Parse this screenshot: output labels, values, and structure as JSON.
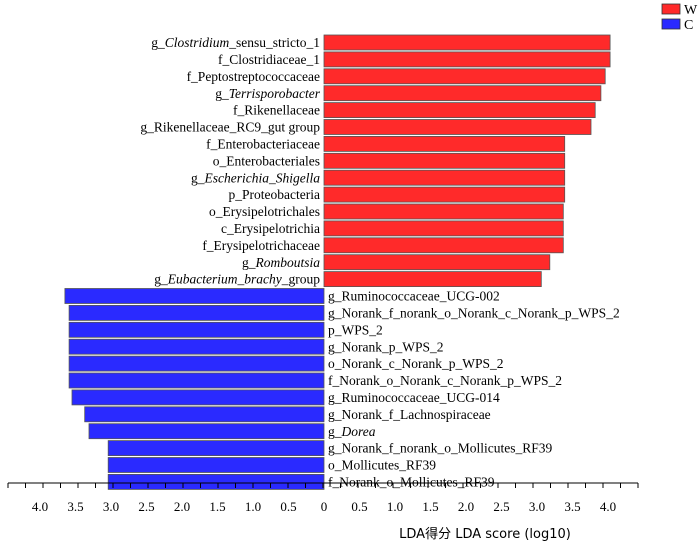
{
  "chart_data": {
    "type": "bar",
    "orientation": "horizontal-diverging",
    "xlabel": "LDA得分  LDA score (log10)",
    "xlim": [
      -4.0,
      4.0
    ],
    "xticks": [
      {
        "value": -4.0,
        "label": "4.0"
      },
      {
        "value": -3.5,
        "label": "3.5"
      },
      {
        "value": -3.0,
        "label": "3.0"
      },
      {
        "value": -2.5,
        "label": "2.5"
      },
      {
        "value": -2.0,
        "label": "2.0"
      },
      {
        "value": -1.5,
        "label": "1.5"
      },
      {
        "value": -1.0,
        "label": "1.0"
      },
      {
        "value": -0.5,
        "label": "0.5"
      },
      {
        "value": 0.0,
        "label": "0"
      },
      {
        "value": 0.5,
        "label": "0.5"
      },
      {
        "value": 1.0,
        "label": "1.0"
      },
      {
        "value": 1.5,
        "label": "1.5"
      },
      {
        "value": 2.0,
        "label": "2.0"
      },
      {
        "value": 2.5,
        "label": "2.5"
      },
      {
        "value": 3.0,
        "label": "3.0"
      },
      {
        "value": 3.5,
        "label": "3.5"
      },
      {
        "value": 4.0,
        "label": "4.0"
      }
    ],
    "legend": {
      "placement": "top-right",
      "entries": [
        {
          "name": "W",
          "color": "#ff2a2a"
        },
        {
          "name": "C",
          "color": "#2a2aff"
        }
      ]
    },
    "bars": [
      {
        "group": "W",
        "value": 4.03,
        "segments": [
          {
            "text": "g_"
          },
          {
            "text": "Clostridium",
            "italic": true
          },
          {
            "text": "_sensu_stricto_1"
          }
        ]
      },
      {
        "group": "W",
        "value": 4.03,
        "segments": [
          {
            "text": "f_Clostridiaceae_1"
          }
        ]
      },
      {
        "group": "W",
        "value": 3.96,
        "segments": [
          {
            "text": "f_Peptostreptococcaceae"
          }
        ]
      },
      {
        "group": "W",
        "value": 3.9,
        "segments": [
          {
            "text": "g_"
          },
          {
            "text": "Terrisporobacter",
            "italic": true
          }
        ]
      },
      {
        "group": "W",
        "value": 3.82,
        "segments": [
          {
            "text": "f_Rikenellaceae"
          }
        ]
      },
      {
        "group": "W",
        "value": 3.76,
        "segments": [
          {
            "text": "g_Rikenellaceae_RC9_gut group"
          }
        ]
      },
      {
        "group": "W",
        "value": 3.39,
        "segments": [
          {
            "text": "f_Enterobacteriaceae"
          }
        ]
      },
      {
        "group": "W",
        "value": 3.39,
        "segments": [
          {
            "text": "o_Enterobacteriales"
          }
        ]
      },
      {
        "group": "W",
        "value": 3.39,
        "segments": [
          {
            "text": "g_"
          },
          {
            "text": "Escherichia_Shigella",
            "italic": true
          }
        ]
      },
      {
        "group": "W",
        "value": 3.39,
        "segments": [
          {
            "text": "p_Proteobacteria"
          }
        ]
      },
      {
        "group": "W",
        "value": 3.37,
        "segments": [
          {
            "text": "o_Erysipelotrichales"
          }
        ]
      },
      {
        "group": "W",
        "value": 3.37,
        "segments": [
          {
            "text": "c_Erysipelotrichia"
          }
        ]
      },
      {
        "group": "W",
        "value": 3.37,
        "segments": [
          {
            "text": "f_Erysipelotrichaceae"
          }
        ]
      },
      {
        "group": "W",
        "value": 3.18,
        "segments": [
          {
            "text": "g_"
          },
          {
            "text": "Romboutsia",
            "italic": true
          }
        ]
      },
      {
        "group": "W",
        "value": 3.06,
        "segments": [
          {
            "text": "g_"
          },
          {
            "text": "Eubacterium_brachy",
            "italic": true
          },
          {
            "text": "_group"
          }
        ]
      },
      {
        "group": "C",
        "value": -3.65,
        "segments": [
          {
            "text": "g_Ruminococcaceae_UCG-002"
          }
        ]
      },
      {
        "group": "C",
        "value": -3.59,
        "segments": [
          {
            "text": "g_Norank_f_norank_o_Norank_c_Norank_p_WPS_2"
          }
        ]
      },
      {
        "group": "C",
        "value": -3.59,
        "segments": [
          {
            "text": "p_WPS_2"
          }
        ]
      },
      {
        "group": "C",
        "value": -3.59,
        "segments": [
          {
            "text": "g_Norank_p_WPS_2"
          }
        ]
      },
      {
        "group": "C",
        "value": -3.59,
        "segments": [
          {
            "text": "o_Norank_c_Norank_p_WPS_2"
          }
        ]
      },
      {
        "group": "C",
        "value": -3.59,
        "segments": [
          {
            "text": "f_Norank_o_Norank_c_Norank_p_WPS_2"
          }
        ]
      },
      {
        "group": "C",
        "value": -3.55,
        "segments": [
          {
            "text": "g_Ruminococcaceae_UCG-014"
          }
        ]
      },
      {
        "group": "C",
        "value": -3.37,
        "segments": [
          {
            "text": "g_Norank_f_Lachnospiraceae"
          }
        ]
      },
      {
        "group": "C",
        "value": -3.31,
        "segments": [
          {
            "text": "g_"
          },
          {
            "text": "Dorea",
            "italic": true
          }
        ]
      },
      {
        "group": "C",
        "value": -3.04,
        "segments": [
          {
            "text": "g_Norank_f_norank_o_Mollicutes_RF39"
          }
        ]
      },
      {
        "group": "C",
        "value": -3.04,
        "segments": [
          {
            "text": "o_Mollicutes_RF39"
          }
        ]
      },
      {
        "group": "C",
        "value": -3.04,
        "segments": [
          {
            "text": "f_Norank_o_Mollicutes_RF39"
          }
        ]
      }
    ]
  }
}
